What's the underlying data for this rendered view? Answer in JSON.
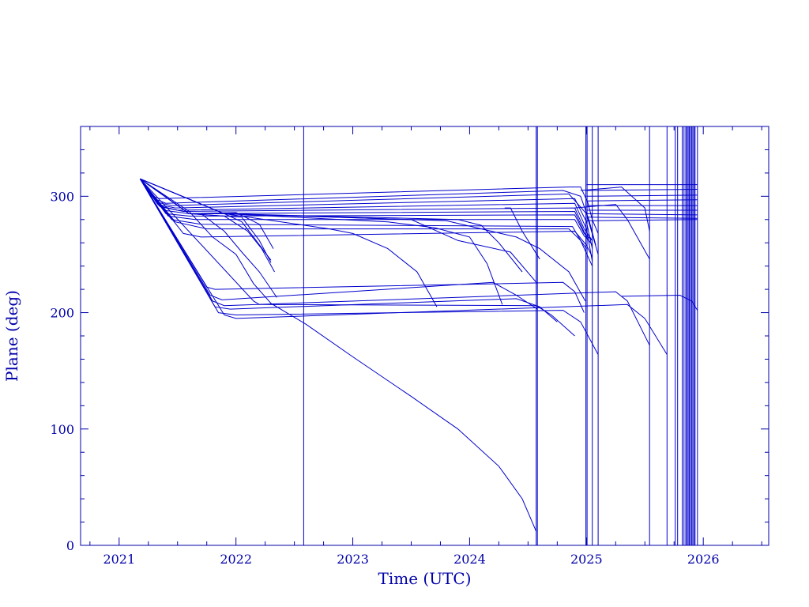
{
  "chart_data": {
    "type": "line",
    "title": "",
    "xlabel": "Time (UTC)",
    "ylabel": "Plane (deg)",
    "xlim": [
      2020.67,
      2026.56
    ],
    "ylim": [
      0,
      360
    ],
    "x_ticks": [
      "2021",
      "2022",
      "2023",
      "2024",
      "2025",
      "2026"
    ],
    "y_ticks": [
      "0",
      "100",
      "200",
      "300"
    ],
    "grid": false,
    "legend": "none",
    "line_color": "#0000cc",
    "axis_color": "#0000aa",
    "vertical_markers": [
      2022.58,
      2024.57,
      2024.58,
      2024.995,
      2025.005,
      2025.05,
      2025.1,
      2025.54,
      2025.69,
      2025.76,
      2025.78,
      2025.82,
      2025.835,
      2025.85,
      2025.86,
      2025.87,
      2025.88,
      2025.89,
      2025.9,
      2025.91,
      2025.92,
      2025.93,
      2025.95
    ],
    "series": [
      {
        "x": [
          2021.18,
          2021.28,
          2021.35,
          2024.85,
          2024.95,
          2025.01,
          2025.05,
          2025.1
        ],
        "y": [
          315,
          300,
          298,
          308,
          308,
          295,
          280,
          268
        ]
      },
      {
        "x": [
          2021.18,
          2021.3,
          2021.4,
          2024.8,
          2024.95,
          2025.02,
          2025.08
        ],
        "y": [
          315,
          298,
          294,
          305,
          300,
          280,
          258
        ]
      },
      {
        "x": [
          2021.18,
          2021.32,
          2021.45,
          2024.85,
          2025.0,
          2025.1
        ],
        "y": [
          315,
          295,
          292,
          302,
          285,
          250
        ]
      },
      {
        "x": [
          2021.18,
          2021.33,
          2021.48,
          2024.9,
          2025.0,
          2025.05
        ],
        "y": [
          315,
          293,
          290,
          298,
          278,
          255
        ]
      },
      {
        "x": [
          2021.18,
          2021.34,
          2021.5,
          2024.9,
          2025.0,
          2025.05
        ],
        "y": [
          315,
          292,
          288,
          294,
          272,
          244
        ]
      },
      {
        "x": [
          2021.18,
          2021.35,
          2021.55,
          2024.9,
          2024.98,
          2025.05
        ],
        "y": [
          315,
          291,
          287,
          290,
          272,
          262
        ]
      },
      {
        "x": [
          2021.18,
          2021.38,
          2021.6,
          2024.9,
          2025.0,
          2025.05
        ],
        "y": [
          315,
          288,
          285,
          287,
          265,
          258
        ]
      },
      {
        "x": [
          2021.18,
          2021.4,
          2021.6,
          2024.9,
          2024.98,
          2025.05
        ],
        "y": [
          315,
          285,
          283,
          284,
          268,
          262
        ]
      },
      {
        "x": [
          2021.18,
          2021.42,
          2021.65,
          2024.9,
          2024.98,
          2025.02
        ],
        "y": [
          315,
          283,
          280,
          280,
          266,
          262
        ]
      },
      {
        "x": [
          2021.18,
          2021.45,
          2021.7,
          2024.88,
          2024.95,
          2025.0
        ],
        "y": [
          315,
          280,
          276,
          274,
          262,
          255
        ]
      },
      {
        "x": [
          2021.18,
          2021.48,
          2021.75,
          2024.85,
          2024.95,
          2025.05
        ],
        "y": [
          315,
          278,
          272,
          272,
          262,
          240
        ]
      },
      {
        "x": [
          2021.18,
          2021.55,
          2021.7,
          2024.9,
          2025.0,
          2025.05
        ],
        "y": [
          315,
          268,
          265,
          270,
          258,
          248
        ]
      },
      {
        "x": [
          2021.18,
          2021.75,
          2021.82,
          2024.8,
          2024.9,
          2024.98
        ],
        "y": [
          315,
          222,
          220,
          226,
          218,
          200
        ]
      },
      {
        "x": [
          2021.18,
          2021.78,
          2021.88,
          2024.2,
          2024.4,
          2024.58
        ],
        "y": [
          315,
          215,
          211,
          226,
          215,
          203
        ]
      },
      {
        "x": [
          2021.18,
          2021.8,
          2021.9,
          2025.25,
          2025.35,
          2025.54
        ],
        "y": [
          315,
          210,
          206,
          218,
          210,
          172
        ]
      },
      {
        "x": [
          2021.18,
          2021.82,
          2021.95,
          2024.4,
          2024.6,
          2024.75
        ],
        "y": [
          315,
          205,
          203,
          212,
          205,
          192
        ]
      },
      {
        "x": [
          2021.18,
          2021.85,
          2022.0,
          2024.8,
          2024.95,
          2025.1
        ],
        "y": [
          315,
          200,
          198,
          202,
          192,
          164
        ]
      },
      {
        "x": [
          2021.18,
          2021.9,
          2022.0,
          2025.35,
          2025.5,
          2025.69
        ],
        "y": [
          315,
          198,
          195,
          207,
          195,
          164
        ]
      },
      {
        "x": [
          2021.18,
          2022.15,
          2022.2,
          2024.57,
          2024.7,
          2024.9
        ],
        "y": [
          315,
          210,
          207,
          206,
          198,
          180
        ]
      },
      {
        "x": [
          2021.18,
          2021.6,
          2021.7,
          2021.9,
          2022.05,
          2022.2,
          2022.35
        ],
        "y": [
          315,
          285,
          285,
          270,
          252,
          235,
          213
        ]
      },
      {
        "x": [
          2021.18,
          2021.6,
          2021.9,
          2022.1,
          2022.22,
          2022.33
        ],
        "y": [
          315,
          285,
          283,
          270,
          255,
          235
        ]
      },
      {
        "x": [
          2021.18,
          2021.6,
          2022.0,
          2022.2,
          2022.32
        ],
        "y": [
          315,
          285,
          286,
          276,
          255
        ]
      },
      {
        "x": [
          2021.18,
          2021.6,
          2022.05,
          2022.2,
          2022.3
        ],
        "y": [
          315,
          285,
          282,
          262,
          243
        ]
      },
      {
        "x": [
          2021.18,
          2021.6,
          2021.9,
          2022.05,
          2022.15,
          2022.3
        ],
        "y": [
          315,
          285,
          285,
          278,
          265,
          245
        ]
      },
      {
        "x": [
          2021.18,
          2021.9,
          2022.8,
          2023.0,
          2023.3,
          2023.55,
          2023.72
        ],
        "y": [
          315,
          285,
          272,
          268,
          255,
          235,
          205
        ]
      },
      {
        "x": [
          2021.18,
          2021.9,
          2023.9,
          2024.1,
          2024.25,
          2024.45
        ],
        "y": [
          315,
          285,
          280,
          275,
          260,
          235
        ]
      },
      {
        "x": [
          2021.18,
          2021.9,
          2023.5,
          2023.9,
          2024.35,
          2024.58
        ],
        "y": [
          315,
          285,
          280,
          262,
          252,
          225
        ]
      },
      {
        "x": [
          2021.18,
          2021.9,
          2023.3,
          2023.7,
          2024.0,
          2024.15,
          2024.28
        ],
        "y": [
          315,
          285,
          278,
          273,
          265,
          242,
          207
        ]
      },
      {
        "x": [
          2021.18,
          2021.9,
          2023.8,
          2024.4,
          2024.6,
          2024.85,
          2024.99
        ],
        "y": [
          315,
          285,
          279,
          265,
          255,
          235,
          210
        ]
      },
      {
        "x": [
          2021.18,
          2021.6,
          2021.8,
          2022.0,
          2022.15,
          2022.3,
          2022.6,
          2023.0,
          2023.5,
          2023.9,
          2024.25,
          2024.45,
          2024.57
        ],
        "y": [
          315,
          287,
          265,
          250,
          225,
          208,
          190,
          162,
          128,
          100,
          68,
          40,
          12
        ]
      },
      {
        "x": [
          2024.95,
          2025.3,
          2025.5,
          2025.54
        ],
        "y": [
          305,
          308,
          290,
          270
        ]
      },
      {
        "x": [
          2024.9,
          2025.25,
          2025.35,
          2025.54
        ],
        "y": [
          290,
          293,
          280,
          246
        ]
      },
      {
        "x": [
          2024.3,
          2024.35,
          2024.45,
          2024.6
        ],
        "y": [
          290,
          290,
          270,
          246
        ]
      },
      {
        "x": [
          2025.0,
          2025.95
        ],
        "y": [
          310,
          310
        ]
      },
      {
        "x": [
          2025.0,
          2025.95
        ],
        "y": [
          305,
          306
        ]
      },
      {
        "x": [
          2025.0,
          2025.95
        ],
        "y": [
          300,
          301
        ]
      },
      {
        "x": [
          2025.0,
          2025.95
        ],
        "y": [
          296,
          297
        ]
      },
      {
        "x": [
          2025.0,
          2025.95
        ],
        "y": [
          292,
          292
        ]
      },
      {
        "x": [
          2025.0,
          2025.95
        ],
        "y": [
          288,
          288
        ]
      },
      {
        "x": [
          2025.0,
          2025.95
        ],
        "y": [
          285,
          284
        ]
      },
      {
        "x": [
          2025.0,
          2025.95
        ],
        "y": [
          282,
          281
        ]
      },
      {
        "x": [
          2025.0,
          2025.95
        ],
        "y": [
          279,
          280
        ]
      },
      {
        "x": [
          2025.3,
          2025.8,
          2025.9,
          2025.95
        ],
        "y": [
          214,
          215,
          210,
          202
        ]
      }
    ]
  }
}
